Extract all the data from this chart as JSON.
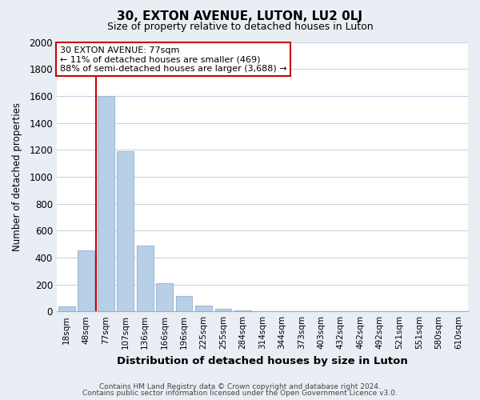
{
  "title": "30, EXTON AVENUE, LUTON, LU2 0LJ",
  "subtitle": "Size of property relative to detached houses in Luton",
  "xlabel": "Distribution of detached houses by size in Luton",
  "ylabel": "Number of detached properties",
  "bar_color": "#b8cfe8",
  "bar_edge_color": "#a0b8d8",
  "red_line_color": "#cc0000",
  "categories": [
    "18sqm",
    "48sqm",
    "77sqm",
    "107sqm",
    "136sqm",
    "166sqm",
    "196sqm",
    "225sqm",
    "255sqm",
    "284sqm",
    "314sqm",
    "344sqm",
    "373sqm",
    "403sqm",
    "432sqm",
    "462sqm",
    "492sqm",
    "521sqm",
    "551sqm",
    "580sqm",
    "610sqm"
  ],
  "values": [
    35,
    450,
    1600,
    1190,
    490,
    210,
    115,
    45,
    20,
    5,
    2,
    0,
    0,
    0,
    0,
    0,
    0,
    0,
    0,
    0,
    0
  ],
  "red_line_index": 2,
  "annotation_line1": "30 EXTON AVENUE: 77sqm",
  "annotation_line2": "← 11% of detached houses are smaller (469)",
  "annotation_line3": "88% of semi-detached houses are larger (3,688) →",
  "annotation_box_color": "#ffffff",
  "annotation_box_edge": "#cc0000",
  "ylim": [
    0,
    2000
  ],
  "yticks": [
    0,
    200,
    400,
    600,
    800,
    1000,
    1200,
    1400,
    1600,
    1800,
    2000
  ],
  "footer1": "Contains HM Land Registry data © Crown copyright and database right 2024.",
  "footer2": "Contains public sector information licensed under the Open Government Licence v3.0.",
  "bg_color": "#e8eef4",
  "plot_bg_color": "#ffffff",
  "grid_color": "#c8d4e0"
}
